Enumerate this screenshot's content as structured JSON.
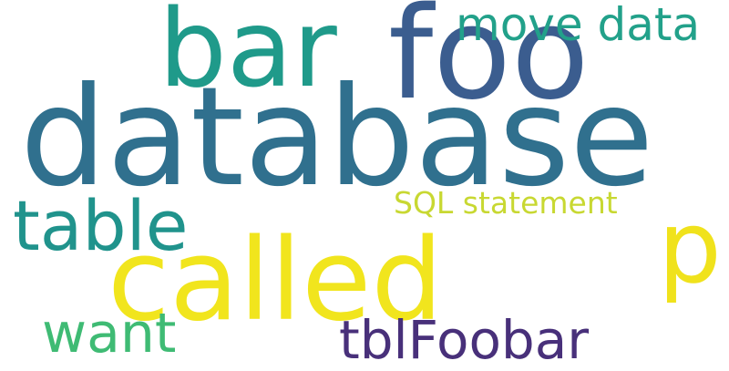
{
  "words": [
    {
      "key": "database",
      "text": "database",
      "color": "#30708e"
    },
    {
      "key": "called",
      "text": "called",
      "color": "#f1e51d"
    },
    {
      "key": "foo",
      "text": "foo",
      "color": "#3b5d8f"
    },
    {
      "key": "bar",
      "text": "bar",
      "color": "#1f9a8a"
    },
    {
      "key": "table",
      "text": "table",
      "color": "#20938c"
    },
    {
      "key": "p",
      "text": "p",
      "color": "#f0e21c"
    },
    {
      "key": "tblFoobar",
      "text": "tblFoobar",
      "color": "#48307a"
    },
    {
      "key": "want",
      "text": "want",
      "color": "#3fbb74"
    },
    {
      "key": "move_data",
      "text": "move data",
      "color": "#22a18a"
    },
    {
      "key": "sql_statement",
      "text": "SQL statement",
      "color": "#c8d832"
    }
  ]
}
